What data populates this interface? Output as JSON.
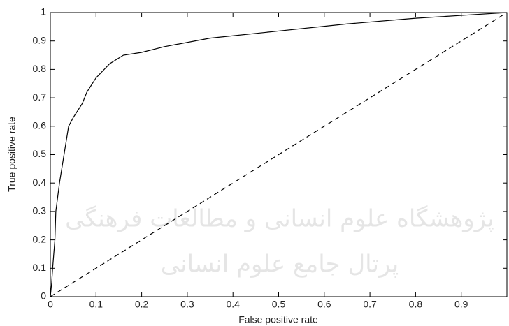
{
  "chart_data": {
    "type": "line",
    "x_label": "False positive rate",
    "y_label": "True positive rate",
    "xlim": [
      0,
      1
    ],
    "ylim": [
      0,
      1
    ],
    "xticks": [
      0,
      0.1,
      0.2,
      0.3,
      0.4,
      0.5,
      0.6,
      0.7,
      0.8,
      0.9
    ],
    "yticks": [
      0,
      0.1,
      0.2,
      0.3,
      0.4,
      0.5,
      0.6,
      0.7,
      0.8,
      0.9,
      1
    ],
    "grid": false,
    "series": [
      {
        "color": "#000000",
        "line_style": "solid",
        "x": [
          0,
          0.003,
          0.005,
          0.01,
          0.012,
          0.02,
          0.03,
          0.04,
          0.05,
          0.07,
          0.08,
          0.1,
          0.13,
          0.16,
          0.2,
          0.25,
          0.35,
          0.5,
          0.65,
          0.8,
          0.9,
          1
        ],
        "values": [
          0,
          0.05,
          0.1,
          0.2,
          0.3,
          0.4,
          0.5,
          0.6,
          0.63,
          0.68,
          0.72,
          0.77,
          0.82,
          0.85,
          0.86,
          0.88,
          0.91,
          0.935,
          0.96,
          0.98,
          0.99,
          1
        ]
      },
      {
        "color": "#000000",
        "line_style": "dashed",
        "x": [
          0,
          1
        ],
        "values": [
          0,
          1
        ]
      }
    ]
  },
  "watermark": [
    "پژوهشگاه علوم انسانی و مطالعات فرهنگی",
    "پرتال جامع علوم انسانی"
  ]
}
